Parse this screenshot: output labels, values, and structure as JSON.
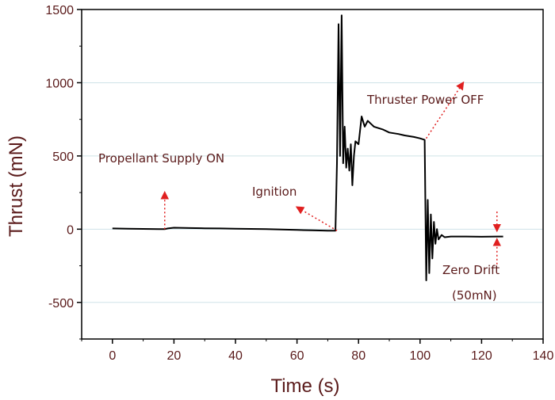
{
  "chart_data": {
    "type": "line",
    "xlabel": "Time (s)",
    "ylabel": "Thrust (mN)",
    "xlim": [
      -10,
      140
    ],
    "ylim": [
      -750,
      1500
    ],
    "xticks": [
      0,
      20,
      40,
      60,
      80,
      100,
      120,
      140
    ],
    "yticks": [
      -500,
      0,
      500,
      1000,
      1500
    ],
    "grid": "horizontal",
    "line_color": "#000000",
    "gridline_color": "#cfe3e8",
    "annotation_color": "#e02020",
    "series": [
      {
        "x": [
          0,
          5,
          10,
          15,
          17,
          18,
          20,
          25,
          30,
          35,
          40,
          45,
          50,
          55,
          60,
          65,
          70,
          72.5,
          73,
          73.5,
          74,
          74.5,
          75,
          75.5,
          76,
          76.5,
          77,
          77.5,
          78,
          78.5,
          79,
          80,
          81,
          82,
          83,
          84,
          85,
          88,
          90,
          93,
          95,
          98,
          100,
          101.5,
          102,
          102.5,
          103,
          103.5,
          104,
          104.5,
          105,
          105.5,
          106,
          107,
          108,
          110,
          115,
          120,
          125,
          127
        ],
        "y": [
          5,
          3,
          2,
          0,
          0,
          5,
          10,
          8,
          6,
          5,
          3,
          2,
          0,
          -2,
          -5,
          -8,
          -10,
          -10,
          450,
          1400,
          500,
          1460,
          450,
          700,
          420,
          550,
          400,
          580,
          300,
          500,
          600,
          580,
          770,
          700,
          740,
          720,
          700,
          680,
          660,
          650,
          640,
          630,
          620,
          610,
          -350,
          200,
          -300,
          100,
          -200,
          50,
          -100,
          0,
          -70,
          -40,
          -55,
          -50,
          -50,
          -52,
          -50,
          -50
        ]
      }
    ],
    "annotations": [
      {
        "text": "Propellant Supply ON",
        "arrow_from": [
          17,
          0
        ],
        "arrow_to": [
          17,
          250
        ]
      },
      {
        "text": "Ignition",
        "arrow_from": [
          73,
          -10
        ],
        "arrow_to": [
          60,
          150
        ]
      },
      {
        "text": "Thruster Power OFF",
        "arrow_from": [
          102,
          620
        ],
        "arrow_to": [
          114,
          1000
        ]
      },
      {
        "text": "Zero Drift",
        "arrow_from": [
          125,
          120
        ],
        "arrow_to": [
          125,
          -10
        ]
      },
      {
        "text": "(50mN)",
        "arrow_from": [
          125,
          -240
        ],
        "arrow_to": [
          125,
          -70
        ]
      }
    ]
  }
}
